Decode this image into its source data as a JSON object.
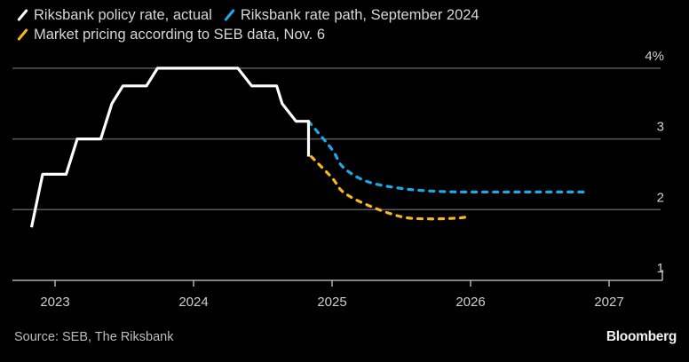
{
  "chart_data": {
    "type": "line",
    "title": "",
    "legend": [
      {
        "name": "Riksbank policy rate, actual",
        "color": "#ffffff",
        "style": "solid"
      },
      {
        "name": "Riksbank rate path, September 2024",
        "color": "#1fa8e8",
        "style": "dashed"
      },
      {
        "name": "Market pricing according to SEB data, Nov. 6",
        "color": "#f5b820",
        "style": "dashed"
      }
    ],
    "legend_position": "top-left",
    "xlabel": "",
    "ylabel": "",
    "x_ticks": [
      "2023",
      "2024",
      "2025",
      "2026",
      "2027"
    ],
    "x_tick_values": [
      2023,
      2024,
      2025,
      2026,
      2027
    ],
    "xlim": [
      2022.8,
      2027.4
    ],
    "y_ticks": [
      "1",
      "2",
      "3",
      "4%"
    ],
    "y_tick_values": [
      1,
      2,
      3,
      4
    ],
    "ylim": [
      1,
      4.25
    ],
    "grid": "horizontal",
    "series": [
      {
        "name": "Riksbank policy rate, actual",
        "color": "#ffffff",
        "x": [
          2022.83,
          2022.91,
          2023.08,
          2023.16,
          2023.33,
          2023.41,
          2023.49,
          2023.66,
          2023.74,
          2024.32,
          2024.42,
          2024.6,
          2024.64,
          2024.74,
          2024.83,
          2024.83
        ],
        "y": [
          1.75,
          2.5,
          2.5,
          3.0,
          3.0,
          3.5,
          3.75,
          3.75,
          4.0,
          4.0,
          3.75,
          3.75,
          3.5,
          3.25,
          3.25,
          2.75
        ]
      },
      {
        "name": "Riksbank rate path, September 2024",
        "color": "#1fa8e8",
        "x": [
          2024.83,
          2025.0,
          2025.08,
          2025.25,
          2025.5,
          2025.75,
          2026.0,
          2026.5,
          2026.85
        ],
        "y": [
          3.25,
          2.85,
          2.6,
          2.4,
          2.3,
          2.26,
          2.25,
          2.25,
          2.25
        ]
      },
      {
        "name": "Market pricing according to SEB data, Nov. 6",
        "color": "#f5b820",
        "x": [
          2024.85,
          2025.0,
          2025.08,
          2025.25,
          2025.5,
          2025.7,
          2025.9,
          2025.98
        ],
        "y": [
          2.75,
          2.45,
          2.25,
          2.07,
          1.9,
          1.87,
          1.88,
          1.9
        ]
      }
    ]
  },
  "footer": {
    "source": "Source: SEB, The Riksbank",
    "brand": "Bloomberg"
  }
}
